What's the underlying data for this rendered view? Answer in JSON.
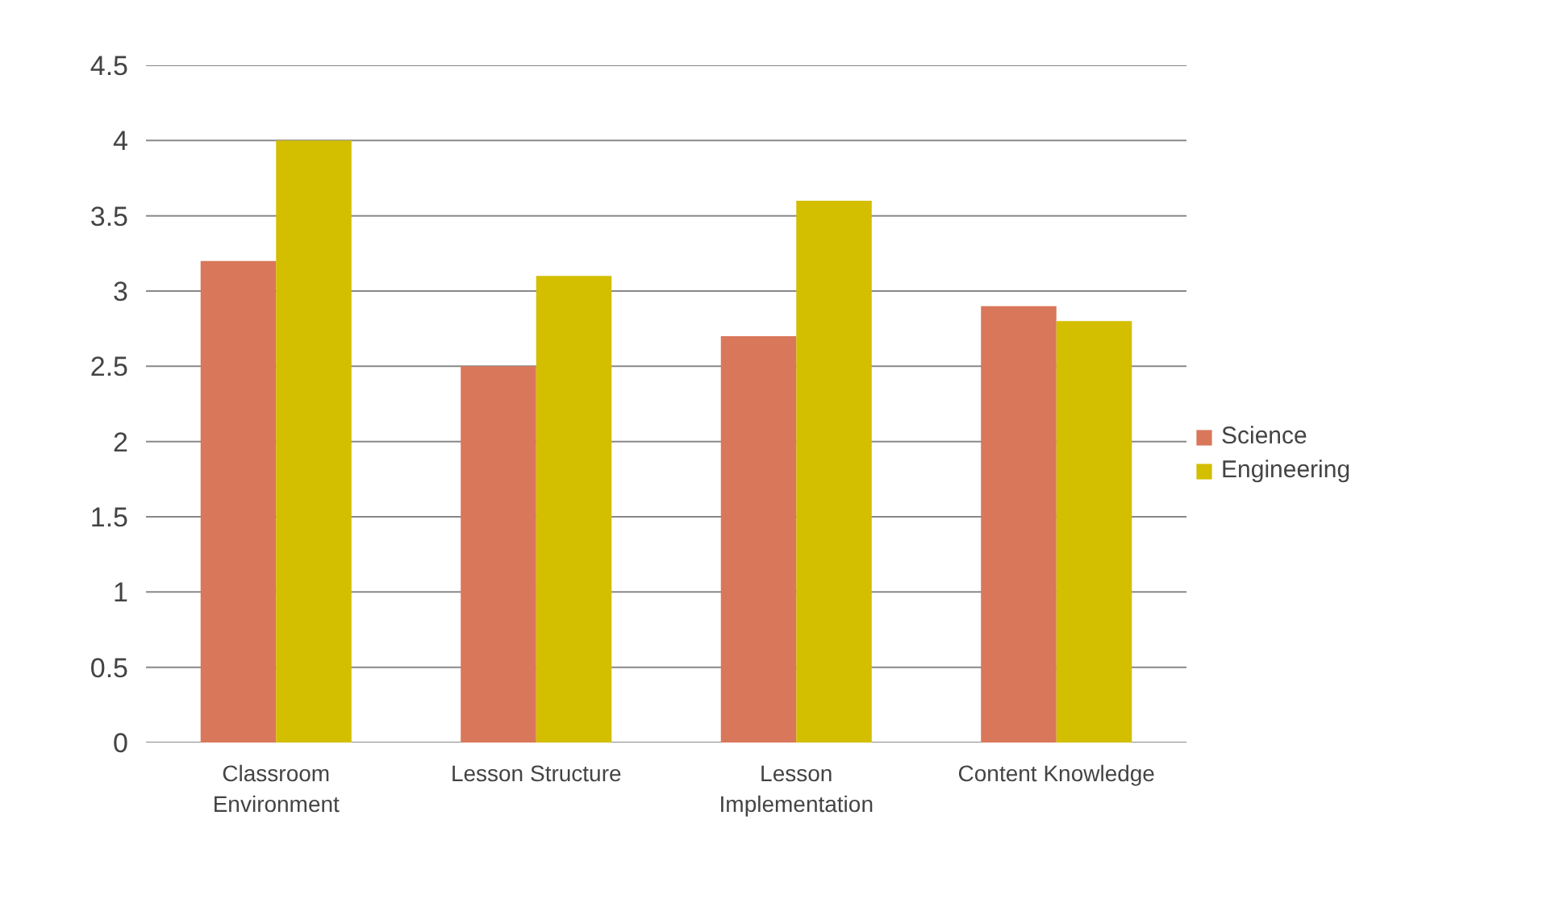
{
  "chart_data": {
    "type": "bar",
    "categories": [
      "Classroom\nEnvironment",
      "Lesson Structure",
      "Lesson\nImplementation",
      "Content Knowledge"
    ],
    "series": [
      {
        "name": "Science",
        "color": "#d9775a",
        "values": [
          3.2,
          2.5,
          2.7,
          2.9
        ]
      },
      {
        "name": "Engineering",
        "color": "#d4be00",
        "values": [
          4.0,
          3.1,
          3.6,
          2.8
        ]
      }
    ],
    "ylim": [
      0,
      4.5
    ],
    "yticks": [
      0,
      0.5,
      1,
      1.5,
      2,
      2.5,
      3,
      3.5,
      4,
      4.5
    ],
    "grid": "y",
    "legend": "right"
  }
}
